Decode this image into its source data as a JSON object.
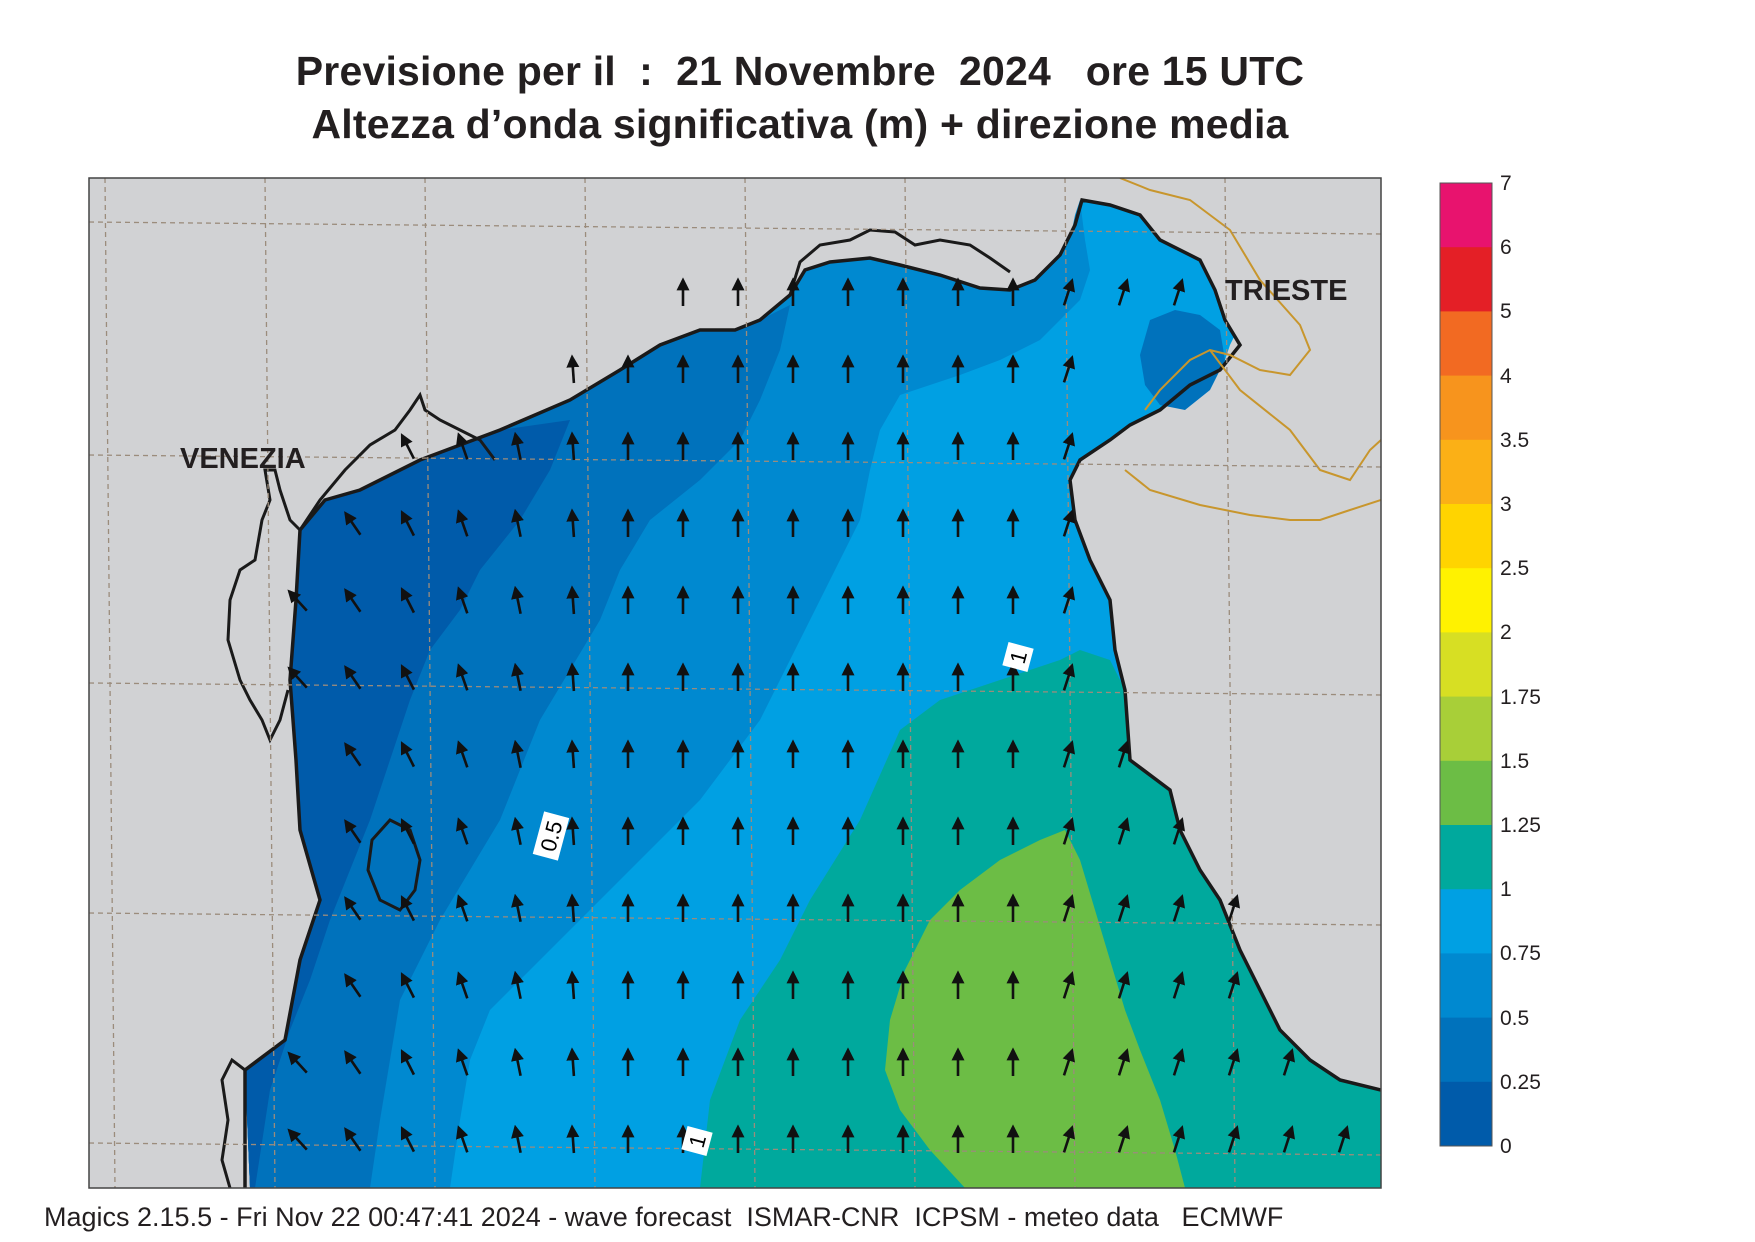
{
  "title": {
    "line1": "Previsione per il  :  21 Novembre  2024   ore 15 UTC",
    "line2": "Altezza d’onda significativa (m) + direzione media"
  },
  "footer": "Magics 2.15.5 - Fri Nov 22 00:47:41 2024 - wave forecast  ISMAR-CNR  ICPSM - meteo data   ECMWF",
  "map": {
    "cities": [
      "VENEZIA",
      "TRIESTE"
    ],
    "contour_labels": [
      "1",
      "0.5",
      "1"
    ],
    "colors": {
      "land": "#d1d2d4",
      "coast": "#1a1a1a",
      "border": "#c8962d",
      "grid": "#9b8c7c"
    }
  },
  "legend": {
    "labels": [
      "7",
      "6",
      "5",
      "4",
      "3.5",
      "3",
      "2.5",
      "2",
      "1.75",
      "1.5",
      "1.25",
      "1",
      "0.75",
      "0.5",
      "0.25",
      "0"
    ],
    "colors": [
      "#e8136e",
      "#e41f26",
      "#f26a22",
      "#f7941d",
      "#fbb016",
      "#ffd400",
      "#fff200",
      "#d7df23",
      "#a8cf38",
      "#6cbd45",
      "#00a99d",
      "#00a0e3",
      "#0089d0",
      "#0072bc",
      "#005baa"
    ]
  }
}
